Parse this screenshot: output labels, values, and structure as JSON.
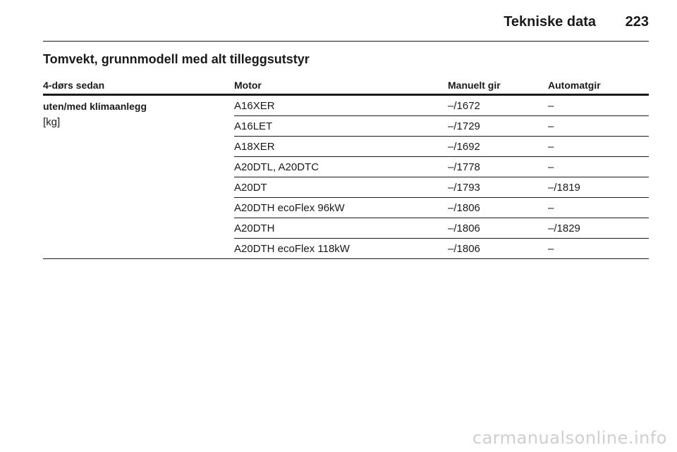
{
  "header": {
    "title": "Tekniske data",
    "page_number": "223"
  },
  "section_title": "Tomvekt, grunnmodell med alt tilleggsutstyr",
  "table": {
    "columns": [
      "4-dørs sedan",
      "Motor",
      "Manuelt gir",
      "Automatgir"
    ],
    "row_header": {
      "label": "uten/med klimaanlegg",
      "unit": "[kg]"
    },
    "rows": [
      {
        "engine": "A16XER",
        "manual": "–/1672",
        "automatic": "–"
      },
      {
        "engine": "A16LET",
        "manual": "–/1729",
        "automatic": "–"
      },
      {
        "engine": "A18XER",
        "manual": "–/1692",
        "automatic": "–"
      },
      {
        "engine": "A20DTL, A20DTC",
        "manual": "–/1778",
        "automatic": "–"
      },
      {
        "engine": "A20DT",
        "manual": "–/1793",
        "automatic": "–/1819"
      },
      {
        "engine": "A20DTH ecoFlex 96kW",
        "manual": "–/1806",
        "automatic": "–"
      },
      {
        "engine": "A20DTH",
        "manual": "–/1806",
        "automatic": "–/1829"
      },
      {
        "engine": "A20DTH ecoFlex 118kW",
        "manual": "–/1806",
        "automatic": "–"
      }
    ]
  },
  "watermark": "carmanualsonline.info"
}
